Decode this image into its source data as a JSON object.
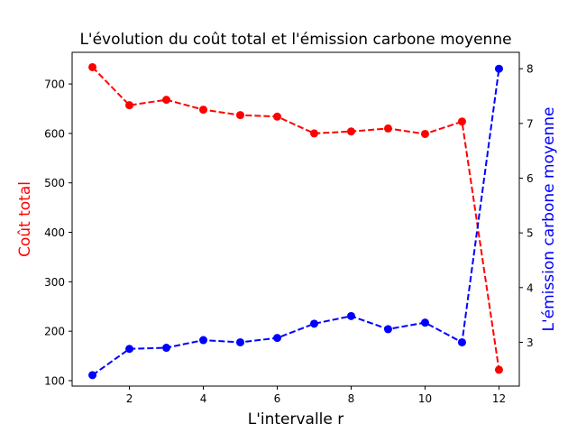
{
  "chart_data": {
    "type": "line",
    "title": "L'évolution du coût total et l'émission carbone moyenne",
    "xlabel": "L'intervalle r",
    "ylabel_left": "Coût total",
    "ylabel_right": "L'émission carbone moyenne",
    "x": [
      1,
      2,
      3,
      4,
      5,
      6,
      7,
      8,
      9,
      10,
      11,
      12
    ],
    "x_ticks": [
      2,
      4,
      6,
      8,
      10,
      12
    ],
    "xlim": [
      0.45,
      12.55
    ],
    "y_left_ticks": [
      100,
      200,
      300,
      400,
      500,
      600,
      700
    ],
    "ylim_left": [
      89,
      764
    ],
    "y_right_ticks": [
      3,
      4,
      5,
      6,
      7,
      8
    ],
    "ylim_right": [
      2.2,
      8.3
    ],
    "grid": false,
    "series": [
      {
        "axis": "left",
        "color": "#ff0000",
        "style": "dashed",
        "marker": "circle",
        "values": [
          734,
          657,
          668,
          648,
          637,
          634,
          600,
          604,
          610,
          599,
          624,
          122
        ]
      },
      {
        "axis": "right",
        "color": "#0000ff",
        "style": "dashed",
        "marker": "circle",
        "values": [
          2.4,
          2.88,
          2.9,
          3.04,
          3.0,
          3.08,
          3.34,
          3.48,
          3.24,
          3.36,
          3.0,
          8.0
        ]
      }
    ]
  }
}
